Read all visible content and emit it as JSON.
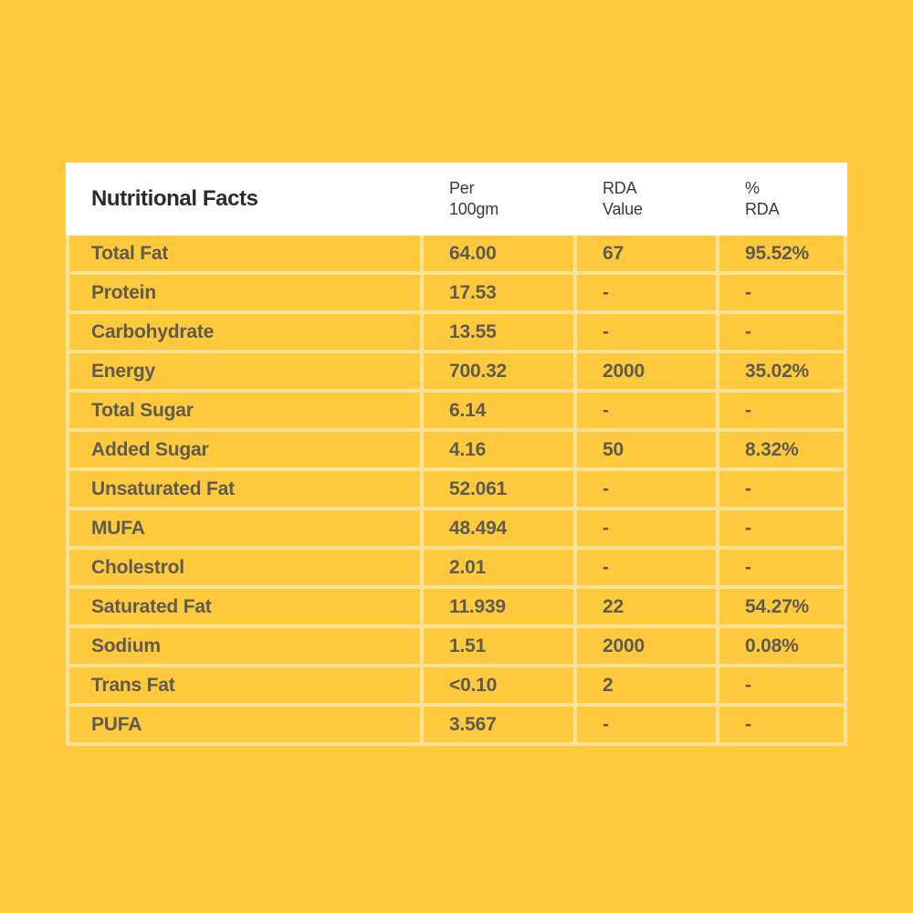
{
  "colors": {
    "page_background": "#FEC93C",
    "header_background": "#FFFFFF",
    "grid_line": "#FFE296",
    "title_text": "#2B2B2B",
    "column_header_text": "#3A3A3A",
    "body_text": "#5E5C50"
  },
  "table": {
    "title": "Nutritional Facts",
    "columns": [
      {
        "line1": "Per",
        "line2": "100gm"
      },
      {
        "line1": "RDA",
        "line2": "Value"
      },
      {
        "line1": "%",
        "line2": "RDA"
      }
    ],
    "rows": [
      {
        "label": "Total Fat",
        "per100": "64.00",
        "rda": "67",
        "pct": "95.52%"
      },
      {
        "label": "Protein",
        "per100": "17.53",
        "rda": "-",
        "pct": "-"
      },
      {
        "label": "Carbohydrate",
        "per100": "13.55",
        "rda": "-",
        "pct": "-"
      },
      {
        "label": "Energy",
        "per100": "700.32",
        "rda": "2000",
        "pct": "35.02%"
      },
      {
        "label": "Total Sugar",
        "per100": "6.14",
        "rda": "-",
        "pct": "-"
      },
      {
        "label": "Added Sugar",
        "per100": "4.16",
        "rda": "50",
        "pct": "8.32%"
      },
      {
        "label": "Unsaturated Fat",
        "per100": "52.061",
        "rda": "-",
        "pct": "-"
      },
      {
        "label": "MUFA",
        "per100": "48.494",
        "rda": "-",
        "pct": "-"
      },
      {
        "label": "Cholestrol",
        "per100": "2.01",
        "rda": "-",
        "pct": "-"
      },
      {
        "label": "Saturated Fat",
        "per100": "11.939",
        "rda": "22",
        "pct": "54.27%"
      },
      {
        "label": "Sodium",
        "per100": "1.51",
        "rda": "2000",
        "pct": "0.08%"
      },
      {
        "label": "Trans Fat",
        "per100": "<0.10",
        "rda": "2",
        "pct": "-"
      },
      {
        "label": "PUFA",
        "per100": "3.567",
        "rda": "-",
        "pct": "-"
      }
    ]
  }
}
